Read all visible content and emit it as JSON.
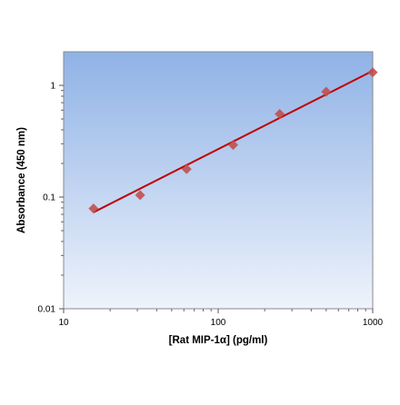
{
  "chart_data": {
    "type": "scatter",
    "title": "",
    "xlabel": "[Rat MIP-1α] (pg/ml)",
    "ylabel": "Absorbance (450 nm)",
    "x_scale": "log",
    "y_scale": "log",
    "xlim": [
      10,
      1000
    ],
    "ylim": [
      0.01,
      2
    ],
    "x_ticks": [
      10,
      100,
      1000
    ],
    "y_ticks": [
      0.01,
      0.1,
      1
    ],
    "x_tick_labels": [
      "10",
      "100",
      "1000"
    ],
    "y_tick_labels": [
      "0.01",
      "0.1",
      "1"
    ],
    "grid": false,
    "legend": "none",
    "series": [
      {
        "x": [
          15.6,
          31.25,
          62.5,
          125,
          250,
          500,
          1000
        ],
        "y": [
          0.079,
          0.104,
          0.178,
          0.293,
          0.555,
          0.878,
          1.31
        ],
        "marker": "diamond",
        "color": "#c0504d"
      }
    ],
    "fit_line": {
      "x": [
        15.6,
        1000
      ],
      "y": [
        0.073,
        1.35
      ],
      "color": "#c00000"
    },
    "colors": {
      "plot_background_top": "#8fb2e6",
      "plot_background_bottom": "#eef3fb",
      "marker": "#c0504d",
      "fit_line": "#c00000"
    }
  }
}
